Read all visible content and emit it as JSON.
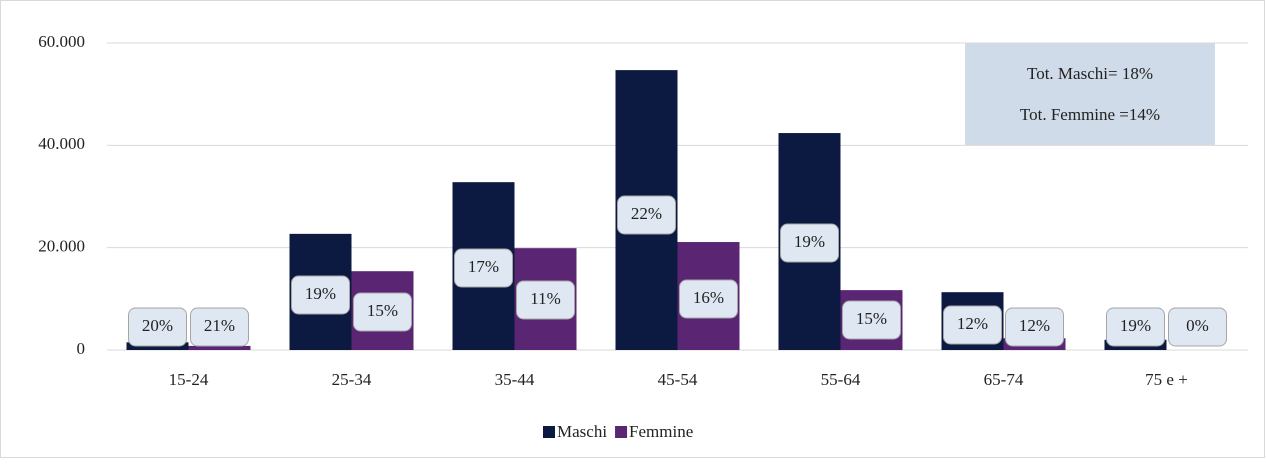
{
  "chart_data": {
    "type": "bar",
    "categories": [
      "15-24",
      "25-34",
      "35-44",
      "45-54",
      "55-64",
      "65-74",
      "75 e +"
    ],
    "series": [
      {
        "name": "Maschi",
        "color": "#0c1941",
        "values": [
          1500,
          22700,
          32800,
          54700,
          42400,
          11300,
          2000
        ],
        "labels": [
          "20%",
          "19%",
          "17%",
          "22%",
          "19%",
          "12%",
          "19%"
        ]
      },
      {
        "name": "Femmine",
        "color": "#5a2673",
        "values": [
          800,
          15400,
          19900,
          21100,
          11700,
          2300,
          0
        ],
        "labels": [
          "21%",
          "15%",
          "11%",
          "16%",
          "15%",
          "12%",
          "0%"
        ]
      }
    ],
    "ylim": [
      0,
      60000
    ],
    "yticks": [
      0,
      {
        "value": 20000,
        "label": "20.000"
      },
      {
        "value": 40000,
        "label": "40.000"
      },
      {
        "value": 60000,
        "label": "60.000"
      }
    ],
    "grid": true,
    "legend": "bottom",
    "annotations": [
      "Tot. Maschi= 18%",
      "Tot. Femmine =14%"
    ]
  }
}
